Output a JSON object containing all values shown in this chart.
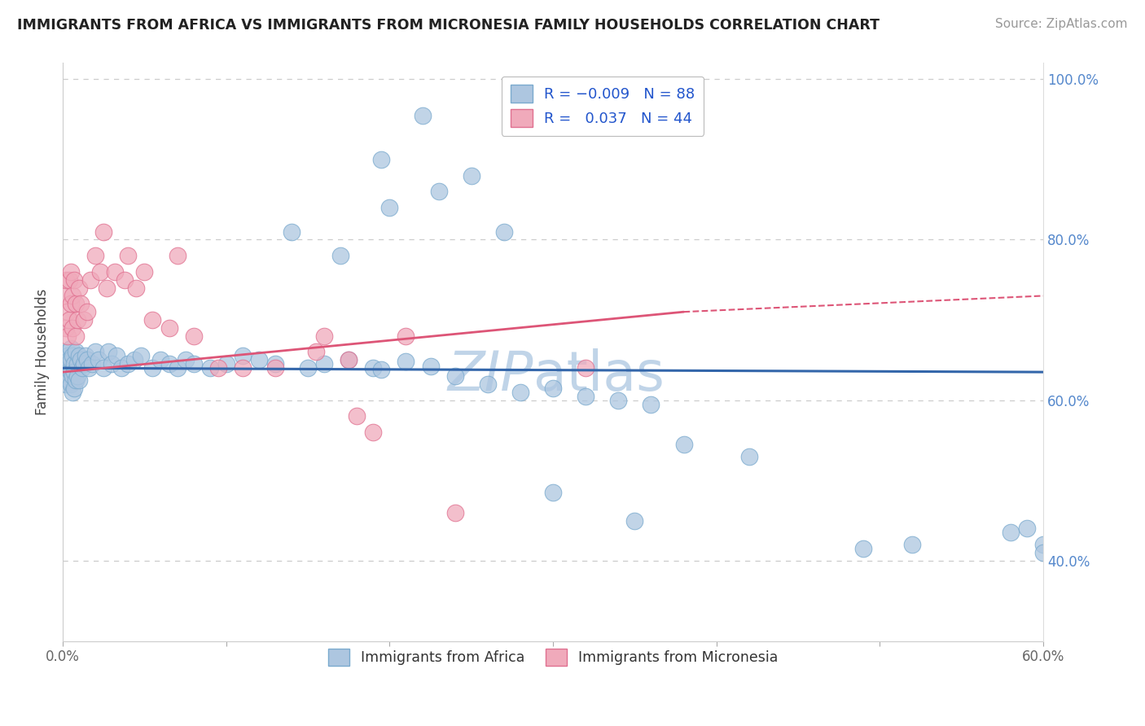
{
  "title": "IMMIGRANTS FROM AFRICA VS IMMIGRANTS FROM MICRONESIA FAMILY HOUSEHOLDS CORRELATION CHART",
  "source": "Source: ZipAtlas.com",
  "ylabel": "Family Households",
  "xlim": [
    0,
    0.6
  ],
  "ylim": [
    0.3,
    1.02
  ],
  "blue_color": "#adc6e0",
  "pink_color": "#f0aabb",
  "blue_edge_color": "#7aaace",
  "pink_edge_color": "#e07090",
  "blue_line_color": "#3366aa",
  "pink_line_color": "#dd5577",
  "title_color": "#222222",
  "source_color": "#999999",
  "grid_color": "#cccccc",
  "watermark_color": "#c0d4e8",
  "right_tick_color": "#5588cc",
  "bottom_tick_color": "#666666",
  "legend_label_color": "#2255cc",
  "blue_trend_x0": 0.0,
  "blue_trend_x1": 0.6,
  "blue_trend_y0": 0.64,
  "blue_trend_y1": 0.635,
  "pink_trend_x0": 0.0,
  "pink_trend_x1": 0.38,
  "pink_trend_y0": 0.635,
  "pink_trend_y1": 0.71,
  "pink_trend_dash_x0": 0.38,
  "pink_trend_dash_x1": 0.6,
  "pink_trend_dash_y0": 0.71,
  "pink_trend_dash_y1": 0.73,
  "blue_x": [
    0.001,
    0.001,
    0.002,
    0.002,
    0.002,
    0.003,
    0.003,
    0.003,
    0.003,
    0.004,
    0.004,
    0.004,
    0.005,
    0.005,
    0.005,
    0.005,
    0.006,
    0.006,
    0.006,
    0.007,
    0.007,
    0.007,
    0.008,
    0.008,
    0.009,
    0.009,
    0.01,
    0.01,
    0.011,
    0.012,
    0.013,
    0.014,
    0.015,
    0.016,
    0.018,
    0.02,
    0.022,
    0.025,
    0.028,
    0.03,
    0.033,
    0.036,
    0.04,
    0.044,
    0.048,
    0.055,
    0.06,
    0.065,
    0.07,
    0.075,
    0.08,
    0.09,
    0.1,
    0.11,
    0.12,
    0.13,
    0.15,
    0.16,
    0.175,
    0.19,
    0.195,
    0.21,
    0.225,
    0.24,
    0.26,
    0.28,
    0.3,
    0.32,
    0.34,
    0.36,
    0.38,
    0.17,
    0.14,
    0.2,
    0.23,
    0.42,
    0.3,
    0.35,
    0.49,
    0.52,
    0.58,
    0.59,
    0.6,
    0.6,
    0.195,
    0.22,
    0.25,
    0.27
  ],
  "blue_y": [
    0.64,
    0.63,
    0.65,
    0.635,
    0.62,
    0.66,
    0.645,
    0.635,
    0.655,
    0.64,
    0.625,
    0.65,
    0.665,
    0.635,
    0.65,
    0.62,
    0.655,
    0.63,
    0.61,
    0.645,
    0.635,
    0.615,
    0.66,
    0.625,
    0.645,
    0.63,
    0.655,
    0.625,
    0.65,
    0.64,
    0.645,
    0.655,
    0.65,
    0.64,
    0.645,
    0.66,
    0.65,
    0.64,
    0.66,
    0.645,
    0.655,
    0.64,
    0.645,
    0.65,
    0.655,
    0.64,
    0.65,
    0.645,
    0.64,
    0.65,
    0.645,
    0.64,
    0.645,
    0.655,
    0.65,
    0.645,
    0.64,
    0.645,
    0.65,
    0.64,
    0.638,
    0.648,
    0.642,
    0.63,
    0.62,
    0.61,
    0.615,
    0.605,
    0.6,
    0.595,
    0.545,
    0.78,
    0.81,
    0.84,
    0.86,
    0.53,
    0.485,
    0.45,
    0.415,
    0.42,
    0.435,
    0.44,
    0.42,
    0.41,
    0.9,
    0.955,
    0.88,
    0.81
  ],
  "pink_x": [
    0.001,
    0.002,
    0.002,
    0.003,
    0.003,
    0.004,
    0.004,
    0.005,
    0.005,
    0.006,
    0.006,
    0.007,
    0.008,
    0.008,
    0.009,
    0.01,
    0.011,
    0.013,
    0.015,
    0.017,
    0.02,
    0.023,
    0.027,
    0.032,
    0.038,
    0.045,
    0.055,
    0.065,
    0.08,
    0.095,
    0.11,
    0.13,
    0.155,
    0.175,
    0.05,
    0.07,
    0.04,
    0.025,
    0.16,
    0.21,
    0.19,
    0.32,
    0.18,
    0.24
  ],
  "pink_y": [
    0.73,
    0.69,
    0.75,
    0.68,
    0.71,
    0.75,
    0.7,
    0.72,
    0.76,
    0.69,
    0.73,
    0.75,
    0.72,
    0.68,
    0.7,
    0.74,
    0.72,
    0.7,
    0.71,
    0.75,
    0.78,
    0.76,
    0.74,
    0.76,
    0.75,
    0.74,
    0.7,
    0.69,
    0.68,
    0.64,
    0.64,
    0.64,
    0.66,
    0.65,
    0.76,
    0.78,
    0.78,
    0.81,
    0.68,
    0.68,
    0.56,
    0.64,
    0.58,
    0.46
  ]
}
